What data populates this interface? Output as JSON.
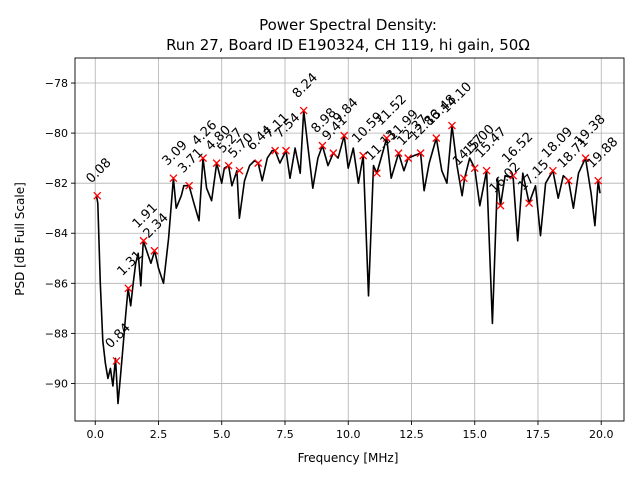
{
  "chart_data": {
    "type": "line",
    "title": [
      "Power Spectral Density:",
      "Run 27, Board ID E190324, CH 119, hi gain, 50Ω"
    ],
    "xlabel": "Frequency [MHz]",
    "ylabel": "PSD [dB Full Scale]",
    "xlim": [
      -0.8,
      20.9
    ],
    "ylim": [
      -91.5,
      -77.0
    ],
    "xticks": [
      0.0,
      2.5,
      5.0,
      7.5,
      10.0,
      12.5,
      15.0,
      17.5,
      20.0
    ],
    "xtick_labels": [
      "0.0",
      "2.5",
      "5.0",
      "7.5",
      "10.0",
      "12.5",
      "15.0",
      "17.5",
      "20.0"
    ],
    "yticks": [
      -90,
      -88,
      -86,
      -84,
      -82,
      -80,
      -78
    ],
    "ytick_labels": [
      "−90",
      "−88",
      "−86",
      "−84",
      "−82",
      "−80",
      "−78"
    ],
    "grid": true,
    "line_color": "#000000",
    "marker_color": "#ff0000",
    "series": [
      {
        "name": "PSD",
        "x": [
          0.05,
          0.1,
          0.2,
          0.3,
          0.4,
          0.5,
          0.6,
          0.7,
          0.8,
          0.9,
          1.0,
          1.1,
          1.2,
          1.3,
          1.4,
          1.5,
          1.6,
          1.7,
          1.8,
          1.9,
          2.0,
          2.2,
          2.35,
          2.5,
          2.7,
          2.9,
          3.09,
          3.2,
          3.4,
          3.5,
          3.71,
          3.9,
          4.1,
          4.26,
          4.4,
          4.6,
          4.8,
          5.0,
          5.1,
          5.27,
          5.4,
          5.6,
          5.7,
          5.9,
          6.1,
          6.3,
          6.44,
          6.6,
          6.8,
          7.0,
          7.11,
          7.3,
          7.54,
          7.7,
          7.9,
          8.1,
          8.24,
          8.4,
          8.6,
          8.8,
          8.98,
          9.2,
          9.41,
          9.6,
          9.84,
          10.0,
          10.2,
          10.4,
          10.59,
          10.8,
          11.0,
          11.13,
          11.3,
          11.52,
          11.7,
          11.99,
          12.2,
          12.37,
          12.6,
          12.86,
          13.0,
          13.2,
          13.48,
          13.7,
          13.9,
          14.1,
          14.3,
          14.5,
          14.6,
          14.8,
          15.0,
          15.2,
          15.47,
          15.7,
          15.9,
          16.02,
          16.2,
          16.52,
          16.7,
          16.9,
          17.15,
          17.4,
          17.6,
          17.8,
          18.09,
          18.3,
          18.5,
          18.71,
          18.9,
          19.1,
          19.38,
          19.6,
          19.75,
          19.88,
          19.95
        ],
        "y": [
          -82.5,
          -82.8,
          -86.0,
          -88.3,
          -89.2,
          -89.8,
          -89.4,
          -90.1,
          -89.0,
          -90.8,
          -89.7,
          -88.5,
          -87.3,
          -86.2,
          -86.9,
          -86.0,
          -85.2,
          -84.8,
          -86.1,
          -84.3,
          -84.6,
          -85.2,
          -84.7,
          -85.4,
          -86.0,
          -84.2,
          -81.8,
          -83.0,
          -82.5,
          -82.1,
          -82.1,
          -82.8,
          -83.5,
          -81.0,
          -82.2,
          -82.7,
          -81.2,
          -82.0,
          -81.4,
          -81.3,
          -82.1,
          -81.5,
          -83.4,
          -81.9,
          -81.3,
          -81.1,
          -81.2,
          -81.9,
          -81.0,
          -80.7,
          -80.7,
          -81.2,
          -80.7,
          -81.8,
          -80.6,
          -81.6,
          -79.1,
          -80.5,
          -82.2,
          -81.0,
          -80.5,
          -81.3,
          -80.8,
          -81.0,
          -80.1,
          -81.4,
          -80.6,
          -82.0,
          -80.9,
          -86.5,
          -81.3,
          -81.6,
          -81.0,
          -80.2,
          -81.8,
          -80.8,
          -81.5,
          -81.0,
          -80.9,
          -80.8,
          -82.3,
          -81.2,
          -80.2,
          -81.5,
          -82.0,
          -79.7,
          -81.3,
          -82.5,
          -81.8,
          -81.0,
          -81.4,
          -82.9,
          -81.5,
          -87.6,
          -81.8,
          -82.9,
          -81.7,
          -81.8,
          -84.3,
          -81.6,
          -82.8,
          -82.1,
          -84.1,
          -82.0,
          -81.5,
          -82.6,
          -81.7,
          -81.9,
          -83.0,
          -81.6,
          -81.0,
          -82.4,
          -83.7,
          -81.9,
          -82.4
        ]
      }
    ],
    "peaks": [
      {
        "x": 0.08,
        "y": -82.5,
        "label": "0.08"
      },
      {
        "x": 0.84,
        "y": -89.1,
        "label": "0.84"
      },
      {
        "x": 1.31,
        "y": -86.2,
        "label": "1.31"
      },
      {
        "x": 1.91,
        "y": -84.3,
        "label": "1.91"
      },
      {
        "x": 2.34,
        "y": -84.7,
        "label": "2.34"
      },
      {
        "x": 3.09,
        "y": -81.8,
        "label": "3.09"
      },
      {
        "x": 3.71,
        "y": -82.1,
        "label": "3.71"
      },
      {
        "x": 4.26,
        "y": -81.0,
        "label": "4.26"
      },
      {
        "x": 4.8,
        "y": -81.2,
        "label": "4.80"
      },
      {
        "x": 5.27,
        "y": -81.3,
        "label": "5.27"
      },
      {
        "x": 5.7,
        "y": -81.5,
        "label": "5.70"
      },
      {
        "x": 6.44,
        "y": -81.2,
        "label": "6.44"
      },
      {
        "x": 7.11,
        "y": -80.7,
        "label": "7.11"
      },
      {
        "x": 7.54,
        "y": -80.7,
        "label": "7.54"
      },
      {
        "x": 8.24,
        "y": -79.1,
        "label": "8.24"
      },
      {
        "x": 8.98,
        "y": -80.5,
        "label": "8.98"
      },
      {
        "x": 9.41,
        "y": -80.8,
        "label": "9.41"
      },
      {
        "x": 9.84,
        "y": -80.1,
        "label": "9.84"
      },
      {
        "x": 10.59,
        "y": -80.9,
        "label": "10.59"
      },
      {
        "x": 11.13,
        "y": -81.6,
        "label": "11.13"
      },
      {
        "x": 11.52,
        "y": -80.2,
        "label": "11.52"
      },
      {
        "x": 11.99,
        "y": -80.8,
        "label": "11.99"
      },
      {
        "x": 12.37,
        "y": -81.0,
        "label": "12.37"
      },
      {
        "x": 12.86,
        "y": -80.8,
        "label": "12.86"
      },
      {
        "x": 13.48,
        "y": -80.2,
        "label": "13.48"
      },
      {
        "x": 14.1,
        "y": -79.7,
        "label": "14.10"
      },
      {
        "x": 14.57,
        "y": -81.8,
        "label": "14.57"
      },
      {
        "x": 15.0,
        "y": -81.4,
        "label": "15.00"
      },
      {
        "x": 15.47,
        "y": -81.5,
        "label": "15.47"
      },
      {
        "x": 16.02,
        "y": -82.9,
        "label": "16.02"
      },
      {
        "x": 16.52,
        "y": -81.7,
        "label": "16.52"
      },
      {
        "x": 17.15,
        "y": -82.8,
        "label": "17.15"
      },
      {
        "x": 18.09,
        "y": -81.5,
        "label": "18.09"
      },
      {
        "x": 18.71,
        "y": -81.9,
        "label": "18.71"
      },
      {
        "x": 19.38,
        "y": -81.0,
        "label": "19.38"
      },
      {
        "x": 19.88,
        "y": -81.9,
        "label": "19.88"
      }
    ]
  }
}
